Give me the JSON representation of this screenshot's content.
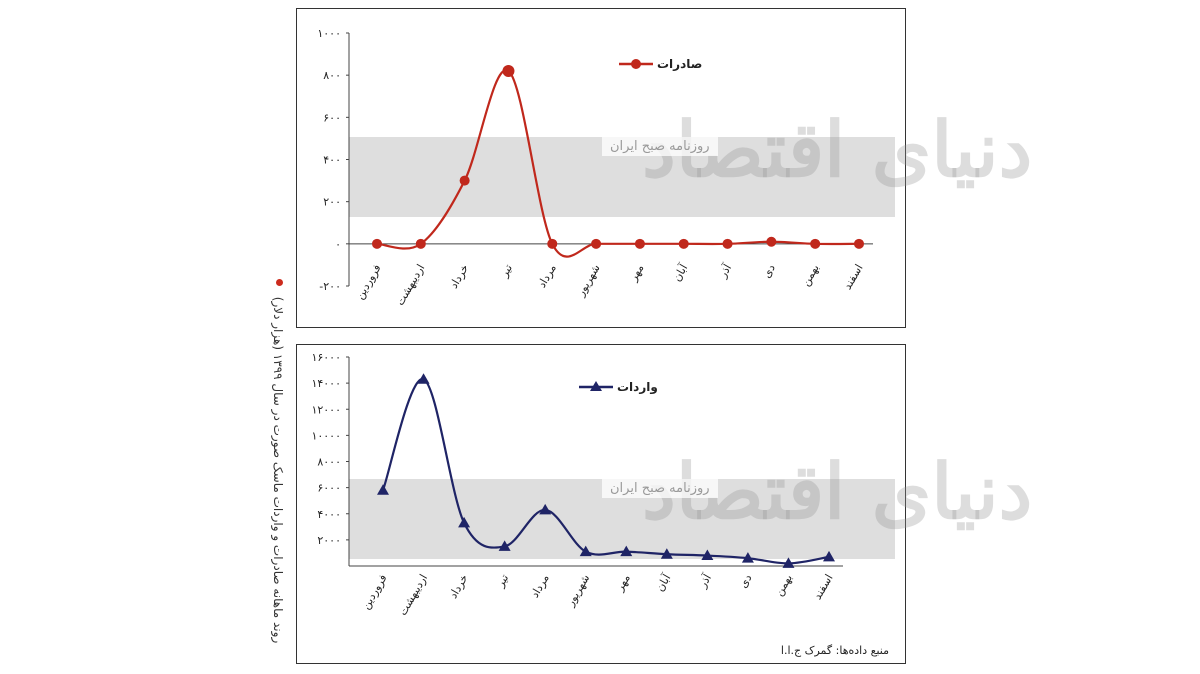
{
  "caption": "روند ماهانه صادرات و واردات ماسک صورت در سال ۱۳۹۹ (هزار دلار)",
  "source_note": "منبع داده‌ها: گمرک ج.ا.ا",
  "watermark": {
    "brand": "دنیای اقتصاد",
    "tag": "روزنامه صبح ایران"
  },
  "colors": {
    "exports": "#c0281c",
    "imports": "#1f2466",
    "band": "#dedede"
  },
  "chart_data": [
    {
      "type": "line",
      "name": "exports",
      "legend": "صادرات",
      "marker": "circle",
      "categories": [
        "فروردین",
        "اردیبهشت",
        "خرداد",
        "تیر",
        "مرداد",
        "شهریور",
        "مهر",
        "آبان",
        "آذر",
        "دی",
        "بهمن",
        "اسفند"
      ],
      "values": [
        0,
        0,
        300,
        820,
        0,
        0,
        0,
        0,
        0,
        10,
        0,
        0
      ],
      "ylim": [
        -200,
        1000
      ],
      "yticks": [
        -200,
        0,
        200,
        400,
        600,
        800,
        1000
      ],
      "ytick_labels": [
        "-۲۰۰",
        "۰",
        "۲۰۰",
        "۴۰۰",
        "۶۰۰",
        "۸۰۰",
        "۱۰۰۰"
      ],
      "legend_position": "top-center",
      "grid": false
    },
    {
      "type": "line",
      "name": "imports",
      "legend": "واردات",
      "marker": "triangle",
      "categories": [
        "فروردین",
        "اردیبهشت",
        "خرداد",
        "تیر",
        "مرداد",
        "شهریور",
        "مهر",
        "آبان",
        "آذر",
        "دی",
        "بهمن",
        "اسفند"
      ],
      "values": [
        5800,
        14300,
        3300,
        1500,
        4300,
        1100,
        1100,
        900,
        800,
        600,
        200,
        700
      ],
      "ylim": [
        0,
        16000
      ],
      "yticks": [
        2000,
        4000,
        6000,
        8000,
        10000,
        12000,
        14000,
        16000
      ],
      "ytick_labels": [
        "۲۰۰۰",
        "۴۰۰۰",
        "۶۰۰۰",
        "۸۰۰۰",
        "۱۰۰۰۰",
        "۱۲۰۰۰",
        "۱۴۰۰۰",
        "۱۶۰۰۰"
      ],
      "legend_position": "top-center",
      "grid": false
    }
  ]
}
